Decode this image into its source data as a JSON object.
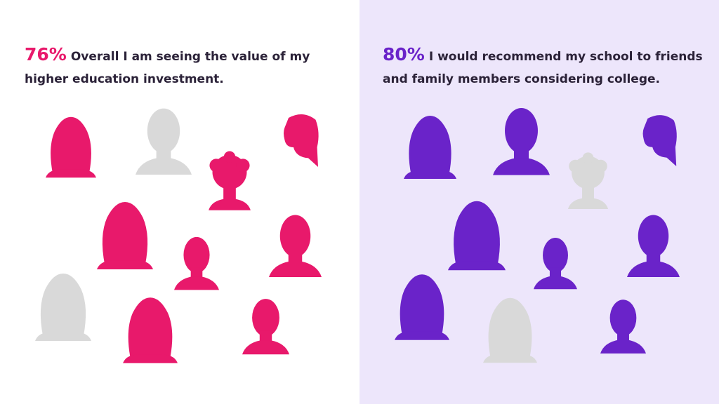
{
  "panels": [
    {
      "percent": "76%",
      "statement": "Overall I am seeing the value of my higher education investment."
    },
    {
      "percent": "80%",
      "statement": "I would recommend my school to friends and family members considering college."
    }
  ]
}
